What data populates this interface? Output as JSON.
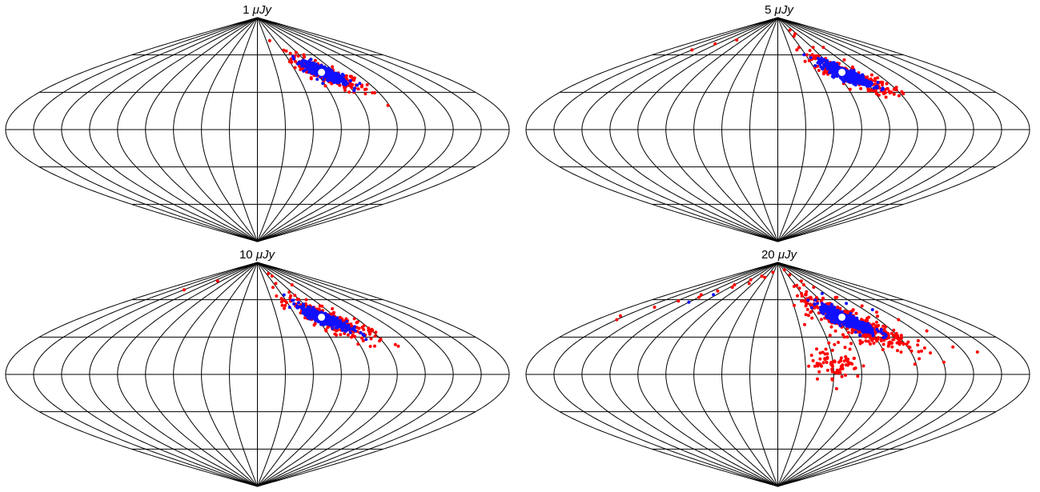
{
  "chart_data": [
    {
      "type": "scatter",
      "projection": "sinusoidal",
      "title_value": "1",
      "title_unit": "μJy",
      "grid": true,
      "meridian_step_deg": 20,
      "parallel_step_deg": 30,
      "colors": {
        "grid": "#000000",
        "red": "#ff0000",
        "blue": "#1010ff",
        "center": "#ffffff"
      },
      "series": [
        {
          "color": "#ff0000",
          "center": [
            69,
            45
          ],
          "spread": [
            14,
            5
          ],
          "tilt": -0.45,
          "n": 220,
          "outliers": []
        },
        {
          "color": "#1010ff",
          "center": [
            68,
            46
          ],
          "spread": [
            8,
            3
          ],
          "tilt": -0.45,
          "n": 380,
          "outliers": []
        }
      ],
      "marker": [
        66,
        46
      ]
    },
    {
      "type": "scatter",
      "projection": "sinusoidal",
      "title_value": "5",
      "title_unit": "μJy",
      "grid": true,
      "meridian_step_deg": 20,
      "parallel_step_deg": 30,
      "colors": {
        "grid": "#000000",
        "red": "#ff0000",
        "blue": "#1010ff",
        "center": "#ffffff"
      },
      "series": [
        {
          "color": "#ff0000",
          "center": [
            70,
            44
          ],
          "spread": [
            15,
            5
          ],
          "tilt": -0.45,
          "n": 240,
          "outliers": [
            [
              -95,
              72
            ],
            [
              -140,
              64
            ],
            [
              -125,
              69
            ],
            [
              50,
              80
            ],
            [
              55,
              77
            ],
            [
              45,
              75
            ],
            [
              80,
              66
            ],
            [
              62,
              66
            ],
            [
              95,
              38
            ],
            [
              100,
              32
            ],
            [
              85,
              56
            ]
          ]
        },
        {
          "color": "#1010ff",
          "center": [
            68,
            45
          ],
          "spread": [
            9,
            3
          ],
          "tilt": -0.45,
          "n": 420,
          "outliers": []
        }
      ],
      "marker": [
        66,
        46
      ]
    },
    {
      "type": "scatter",
      "projection": "sinusoidal",
      "title_value": "10",
      "title_unit": "μJy",
      "grid": true,
      "meridian_step_deg": 20,
      "parallel_step_deg": 30,
      "colors": {
        "grid": "#000000",
        "red": "#ff0000",
        "blue": "#1010ff",
        "center": "#ffffff"
      },
      "series": [
        {
          "color": "#ff0000",
          "center": [
            70,
            44
          ],
          "spread": [
            15,
            5.5
          ],
          "tilt": -0.45,
          "n": 260,
          "outliers": [
            [
              -140,
              68
            ],
            [
              -110,
              75
            ],
            [
              50,
              81
            ],
            [
              55,
              79
            ],
            [
              80,
              72
            ],
            [
              45,
              73
            ],
            [
              78,
              55
            ],
            [
              85,
              27
            ],
            [
              100,
              35
            ],
            [
              60,
              35
            ],
            [
              30,
              63
            ]
          ]
        },
        {
          "color": "#1010ff",
          "center": [
            68,
            45
          ],
          "spread": [
            9,
            3
          ],
          "tilt": -0.45,
          "n": 430,
          "outliers": []
        }
      ],
      "marker": [
        66,
        46
      ]
    },
    {
      "type": "scatter",
      "projection": "sinusoidal",
      "title_value": "20",
      "title_unit": "μJy",
      "grid": true,
      "meridian_step_deg": 20,
      "parallel_step_deg": 30,
      "colors": {
        "grid": "#000000",
        "red": "#ff0000",
        "blue": "#1010ff",
        "center": "#ffffff"
      },
      "series": [
        {
          "color": "#ff0000",
          "center": [
            70,
            42
          ],
          "spread": [
            18,
            7
          ],
          "tilt": -0.45,
          "n": 420,
          "outliers": [
            [
              -165,
              47
            ],
            [
              -150,
              54
            ],
            [
              -138,
              59
            ],
            [
              -125,
              64
            ],
            [
              -110,
              67
            ],
            [
              -95,
              70
            ],
            [
              -80,
              76
            ],
            [
              -70,
              73
            ],
            [
              -60,
              79
            ],
            [
              -45,
              78
            ],
            [
              -25,
              82
            ],
            [
              -120,
              62
            ],
            [
              -100,
              72
            ],
            [
              -160,
              44
            ],
            [
              45,
              84
            ],
            [
              60,
              72
            ],
            [
              65,
              75
            ],
            [
              75,
              70
            ],
            [
              90,
              62
            ],
            [
              105,
              55
            ],
            [
              120,
              44
            ],
            [
              135,
              22
            ],
            [
              150,
              18
            ],
            [
              110,
              50
            ],
            [
              130,
              35
            ],
            [
              30,
              48
            ],
            [
              35,
              55
            ],
            [
              25,
              40
            ],
            [
              40,
              65
            ],
            [
              55,
              30
            ]
          ]
        },
        {
          "color": "#ff0000",
          "center": [
            42,
            10
          ],
          "spread": [
            9,
            7
          ],
          "tilt": 0,
          "n": 80,
          "outliers": []
        },
        {
          "color": "#1010ff",
          "center": [
            68,
            44
          ],
          "spread": [
            10,
            3.5
          ],
          "tilt": -0.45,
          "n": 460,
          "outliers": [
            [
              -120,
              58
            ],
            [
              -105,
              64
            ],
            [
              90,
              57
            ],
            [
              110,
              52
            ],
            [
              75,
              65
            ]
          ]
        }
      ],
      "marker": [
        66,
        46
      ]
    }
  ]
}
